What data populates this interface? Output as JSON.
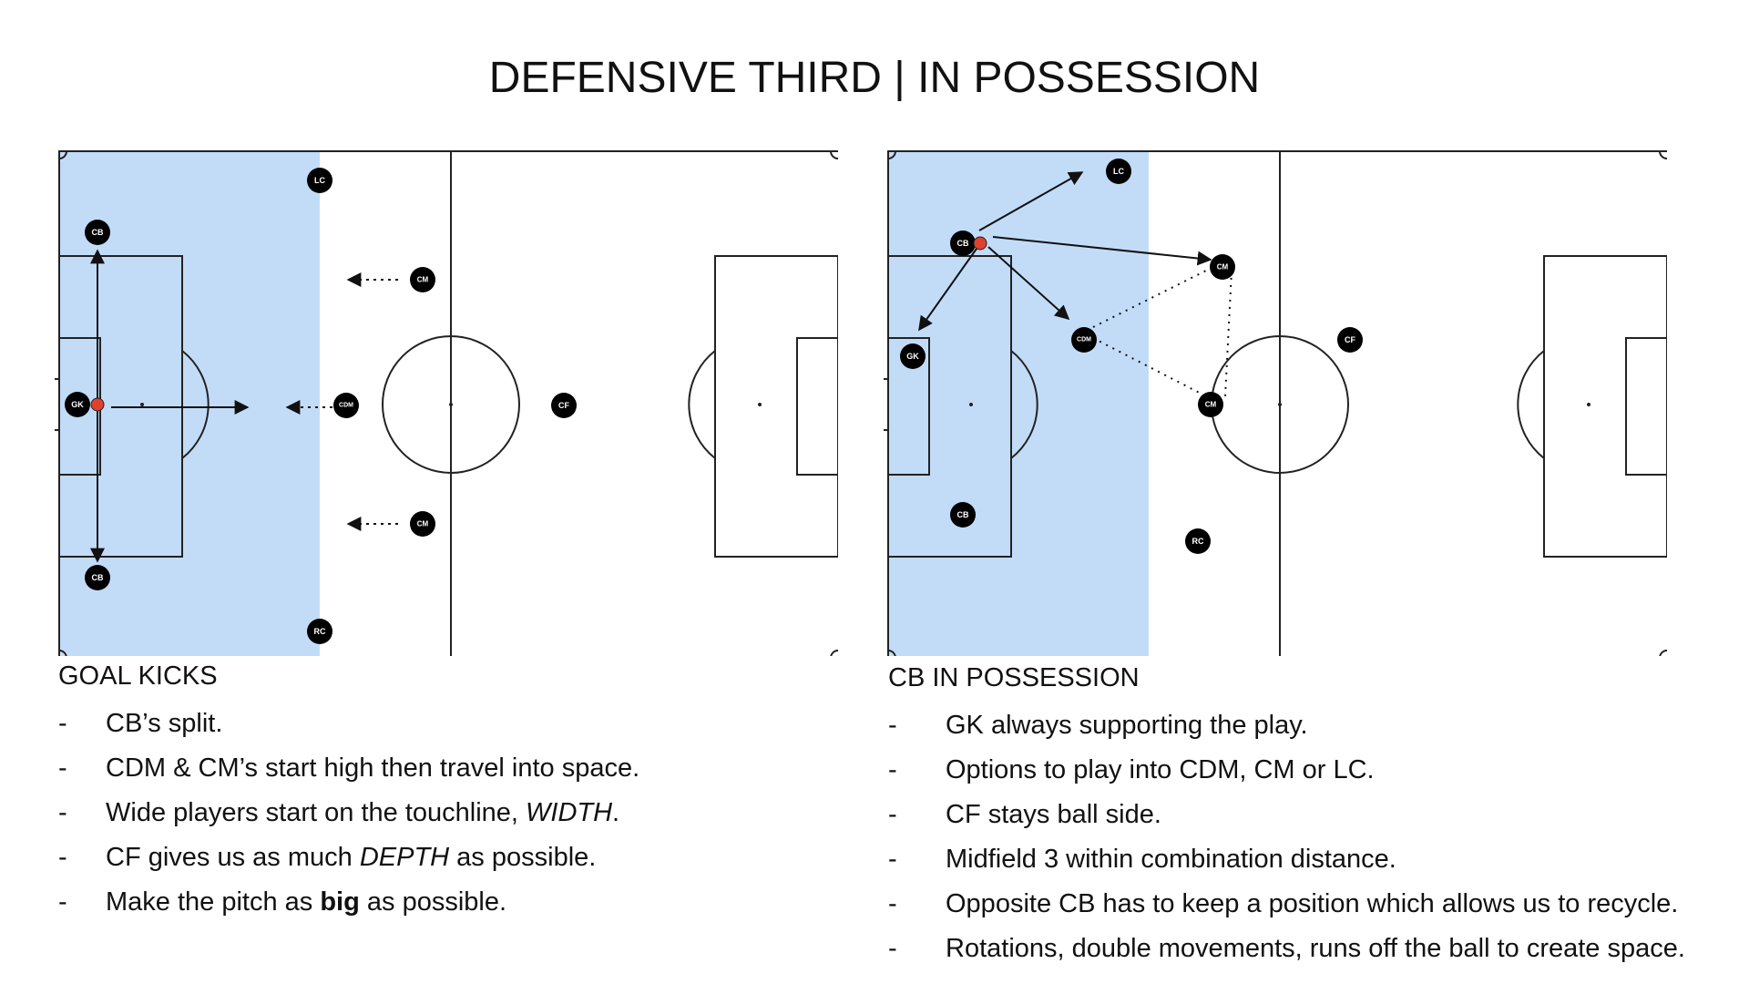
{
  "title": "DEFENSIVE THIRD | IN POSSESSION",
  "colors": {
    "shaded_zone": "#c2dcf8",
    "ball": "#e0412d",
    "player": "#000000",
    "line": "#222222"
  },
  "left_panel": {
    "heading": "GOAL KICKS",
    "players": [
      "LC",
      "CB",
      "CM",
      "GK",
      "CDM",
      "CF",
      "CM",
      "CB",
      "RC"
    ],
    "notes": [
      {
        "parts": [
          {
            "t": "CB’s split."
          }
        ]
      },
      {
        "parts": [
          {
            "t": "CDM & CM’s start high then travel into space."
          }
        ]
      },
      {
        "parts": [
          {
            "t": "Wide players start on the touchline, "
          },
          {
            "t": "WIDTH",
            "style": "italic"
          },
          {
            "t": "."
          }
        ]
      },
      {
        "parts": [
          {
            "t": "CF gives us as much "
          },
          {
            "t": "DEPTH",
            "style": "italic"
          },
          {
            "t": " as possible."
          }
        ]
      },
      {
        "parts": [
          {
            "t": "Make the pitch as "
          },
          {
            "t": "big",
            "style": "bold"
          },
          {
            "t": " as possible."
          }
        ]
      }
    ]
  },
  "right_panel": {
    "heading": "CB IN POSSESSION",
    "players": [
      "LC",
      "CB",
      "CM",
      "CDM",
      "CF",
      "GK",
      "CM",
      "CB",
      "RC"
    ],
    "notes": [
      {
        "parts": [
          {
            "t": "GK always supporting the play."
          }
        ]
      },
      {
        "parts": [
          {
            "t": "Options to play into CDM, CM or LC."
          }
        ]
      },
      {
        "parts": [
          {
            "t": "CF stays ball side."
          }
        ]
      },
      {
        "parts": [
          {
            "t": "Midfield 3 within combination distance."
          }
        ]
      },
      {
        "parts": [
          {
            "t": "Opposite CB has to keep a position which allows us to recycle."
          }
        ]
      },
      {
        "parts": [
          {
            "t": "Rotations, double movements, runs off the ball to create space."
          }
        ]
      }
    ]
  }
}
